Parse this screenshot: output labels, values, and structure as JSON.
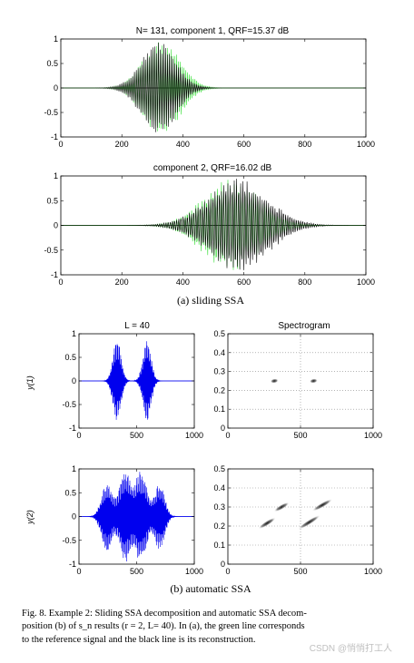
{
  "chart_data": [
    {
      "id": "p1",
      "type": "line",
      "title": "N= 131, component 1, QRF=15.37 dB",
      "xlim": [
        0,
        1000
      ],
      "ylim": [
        -1,
        1
      ],
      "xticks": [
        "0",
        "200",
        "400",
        "600",
        "800",
        "1000"
      ],
      "yticks": [
        "1",
        "0.5",
        "0",
        "-0.5",
        "-1"
      ],
      "series": [
        {
          "color": "#33dd33",
          "envelope": {
            "center": 330,
            "width": 85,
            "amp": 0.97
          },
          "period": 6
        },
        {
          "color": "#000000",
          "envelope": {
            "center": 320,
            "width": 80,
            "amp": 0.95
          },
          "period": 6
        }
      ]
    },
    {
      "id": "p2",
      "type": "line",
      "title": "component 2, QRF=16.02 dB",
      "xlim": [
        0,
        1000
      ],
      "ylim": [
        -1,
        1
      ],
      "xticks": [
        "0",
        "200",
        "400",
        "600",
        "800",
        "1000"
      ],
      "yticks": [
        "1",
        "0.5",
        "0",
        "-0.5",
        "-1"
      ],
      "series": [
        {
          "color": "#33dd33",
          "envelope": {
            "center": 560,
            "width": 130,
            "amp": 0.97
          },
          "period": 7
        },
        {
          "color": "#000000",
          "envelope": {
            "center": 580,
            "width": 140,
            "amp": 0.97
          },
          "period": 7
        }
      ]
    },
    {
      "id": "p3",
      "type": "line",
      "title": "L = 40",
      "ylabel": "y(1)",
      "xlim": [
        0,
        1000
      ],
      "ylim": [
        -1,
        1
      ],
      "xticks": [
        "0",
        "500",
        "1000"
      ],
      "yticks": [
        "1",
        "0.5",
        "0",
        "-0.5",
        "-1"
      ],
      "series": [
        {
          "color": "#0000ee",
          "bumps": [
            {
              "center": 330,
              "width": 50,
              "amp": 0.92
            },
            {
              "center": 590,
              "width": 50,
              "amp": 0.92
            }
          ],
          "period": 5
        }
      ]
    },
    {
      "id": "p4",
      "type": "heatmap",
      "title": "Spectrogram",
      "xlim": [
        0,
        1000
      ],
      "ylim": [
        0,
        0.5
      ],
      "xticks": [
        "0",
        "500",
        "1000"
      ],
      "yticks": [
        "0.5",
        "0.4",
        "0.3",
        "0.2",
        "0.1",
        "0"
      ],
      "grid": "dotted",
      "blobs": [
        {
          "x": 320,
          "y": 0.25,
          "rx": 28,
          "ry": 0.012,
          "angle": -10
        },
        {
          "x": 590,
          "y": 0.25,
          "rx": 28,
          "ry": 0.012,
          "angle": -10
        }
      ]
    },
    {
      "id": "p5",
      "type": "line",
      "ylabel": "y(2)",
      "xlim": [
        0,
        1000
      ],
      "ylim": [
        -1,
        1
      ],
      "xticks": [
        "0",
        "500",
        "1000"
      ],
      "yticks": [
        "1",
        "0.5",
        "0",
        "-0.5",
        "-1"
      ],
      "series": [
        {
          "color": "#0000ee",
          "bumps": [
            {
              "center": 240,
              "width": 65,
              "amp": 0.75
            },
            {
              "center": 400,
              "width": 70,
              "amp": 1.0
            },
            {
              "center": 540,
              "width": 70,
              "amp": 1.0
            },
            {
              "center": 700,
              "width": 60,
              "amp": 0.75
            }
          ],
          "period": 5
        }
      ]
    },
    {
      "id": "p6",
      "type": "heatmap",
      "xlim": [
        0,
        1000
      ],
      "ylim": [
        0,
        0.5
      ],
      "xticks": [
        "0",
        "500",
        "1000"
      ],
      "yticks": [
        "0.5",
        "0.4",
        "0.3",
        "0.2",
        "0.1",
        "0"
      ],
      "grid": "dotted",
      "blobs": [
        {
          "x": 270,
          "y": 0.215,
          "rx": 70,
          "ry": 0.012,
          "angle": -32
        },
        {
          "x": 560,
          "y": 0.22,
          "rx": 90,
          "ry": 0.012,
          "angle": -32
        },
        {
          "x": 370,
          "y": 0.3,
          "rx": 60,
          "ry": 0.012,
          "angle": -30
        },
        {
          "x": 650,
          "y": 0.31,
          "rx": 80,
          "ry": 0.012,
          "angle": -30
        }
      ]
    }
  ],
  "captions": {
    "a": "(a)  sliding SSA",
    "b": "(b)  automatic SSA"
  },
  "figure_caption": [
    "Fig. 8.   Example 2: Sliding SSA decomposition and automatic SSA decom-",
    "position (b) of s_n results (r = 2, L= 40). In (a), the green line corresponds",
    "to the reference signal and the black line is its reconstruction."
  ],
  "watermark": "CSDN @悄悄打工人"
}
